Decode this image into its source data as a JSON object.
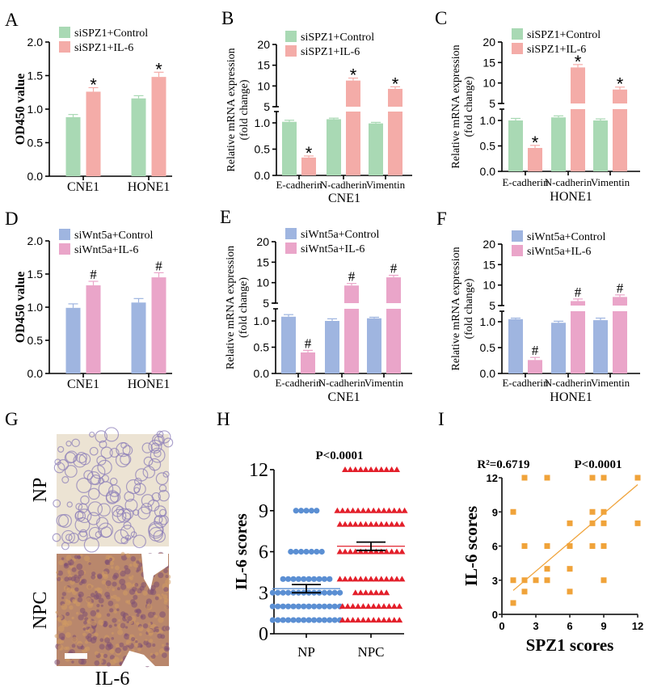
{
  "panel_labels": [
    "A",
    "B",
    "C",
    "D",
    "E",
    "F",
    "G",
    "H",
    "I"
  ],
  "panel_g": {
    "row_labels": [
      "NP",
      "NPC"
    ],
    "stain_label": "IL-6"
  },
  "chart_data": [
    {
      "panel": "A",
      "type": "bar",
      "ylabel": "OD450 value",
      "xlabel": "",
      "ylim": [
        0,
        2.0
      ],
      "yticks": [
        "0.0",
        "0.5",
        "1.0",
        "1.5",
        "2.0"
      ],
      "categories": [
        "CNE1",
        "HONE1"
      ],
      "marker": "*",
      "series": [
        {
          "name": "siSPZ1+Control",
          "color": "#a9d9b4",
          "values": [
            0.88,
            1.16
          ],
          "errors": [
            0.04,
            0.04
          ]
        },
        {
          "name": "siSPZ1+IL-6",
          "color": "#f4aca8",
          "values": [
            1.26,
            1.48
          ],
          "errors": [
            0.06,
            0.07
          ],
          "significant": [
            true,
            true
          ]
        }
      ]
    },
    {
      "panel": "B",
      "type": "bar",
      "ylabel": "Relative mRNA expression",
      "ylabel2": "(fold change)",
      "xlabel": "CNE1",
      "broken_axis": true,
      "yticks_lower": [
        "0.0",
        "0.5",
        "1.0"
      ],
      "yticks_upper": [
        "5",
        "10",
        "15",
        "20"
      ],
      "categories": [
        "E-cadherin",
        "N-cadherin",
        "Vimentin"
      ],
      "marker": "*",
      "series": [
        {
          "name": "siSPZ1+Control",
          "color": "#a9d9b4",
          "values": [
            1.02,
            1.07,
            0.99
          ],
          "errors": [
            0.03,
            0.02,
            0.02
          ]
        },
        {
          "name": "siSPZ1+IL-6",
          "color": "#f4aca8",
          "values": [
            0.34,
            11.3,
            9.3
          ],
          "errors": [
            0.03,
            0.6,
            0.5
          ],
          "significant": [
            true,
            true,
            true
          ]
        }
      ]
    },
    {
      "panel": "C",
      "type": "bar",
      "ylabel": "Relative mRNA expression",
      "ylabel2": "(fold change)",
      "xlabel": "HONE1",
      "broken_axis": true,
      "yticks_lower": [
        "0.0",
        "0.5",
        "1.0"
      ],
      "yticks_upper": [
        "5",
        "10",
        "15",
        "20"
      ],
      "categories": [
        "E-cadherin",
        "N-cadherin",
        "Vimentin"
      ],
      "marker": "*",
      "series": [
        {
          "name": "siSPZ1+Control",
          "color": "#a9d9b4",
          "values": [
            1.0,
            1.06,
            1.0
          ],
          "errors": [
            0.04,
            0.03,
            0.03
          ]
        },
        {
          "name": "siSPZ1+IL-6",
          "color": "#f4aca8",
          "values": [
            0.46,
            13.8,
            8.4
          ],
          "errors": [
            0.05,
            0.7,
            0.6
          ],
          "significant": [
            true,
            true,
            true
          ]
        }
      ]
    },
    {
      "panel": "D",
      "type": "bar",
      "ylabel": "OD450 value",
      "xlabel": "",
      "ylim": [
        0,
        2.0
      ],
      "yticks": [
        "0.0",
        "0.5",
        "1.0",
        "1.5",
        "2.0"
      ],
      "categories": [
        "CNE1",
        "HONE1"
      ],
      "marker": "#",
      "series": [
        {
          "name": "siWnt5a+Control",
          "color": "#9fb5e0",
          "values": [
            0.99,
            1.07
          ],
          "errors": [
            0.06,
            0.06
          ]
        },
        {
          "name": "siWnt5a+IL-6",
          "color": "#eaa5c9",
          "values": [
            1.33,
            1.45
          ],
          "errors": [
            0.06,
            0.07
          ],
          "significant": [
            true,
            true
          ]
        }
      ]
    },
    {
      "panel": "E",
      "type": "bar",
      "ylabel": "Relative mRNA expression",
      "ylabel2": "(fold change)",
      "xlabel": "CNE1",
      "broken_axis": true,
      "yticks_lower": [
        "0.0",
        "0.5",
        "1.0"
      ],
      "yticks_upper": [
        "5",
        "10",
        "15",
        "20"
      ],
      "categories": [
        "E-cadherin",
        "N-cadherin",
        "Vimentin"
      ],
      "marker": "#",
      "series": [
        {
          "name": "siWnt5a+Control",
          "color": "#9fb5e0",
          "values": [
            1.08,
            1.0,
            1.05
          ],
          "errors": [
            0.04,
            0.04,
            0.02
          ]
        },
        {
          "name": "siWnt5a+IL-6",
          "color": "#eaa5c9",
          "values": [
            0.4,
            9.3,
            11.3
          ],
          "errors": [
            0.04,
            0.5,
            0.5
          ],
          "significant": [
            true,
            true,
            true
          ]
        }
      ]
    },
    {
      "panel": "F",
      "type": "bar",
      "ylabel": "Relative mRNA expression",
      "ylabel2": "(fold change)",
      "xlabel": "HONE1",
      "broken_axis": true,
      "yticks_lower": [
        "0.0",
        "0.5",
        "1.0"
      ],
      "yticks_upper": [
        "5",
        "10",
        "15",
        "20"
      ],
      "categories": [
        "E-cadherin",
        "N-cadherin",
        "Vimentin"
      ],
      "marker": "#",
      "series": [
        {
          "name": "siWnt5a+Control",
          "color": "#9fb5e0",
          "values": [
            1.05,
            0.98,
            1.03
          ],
          "errors": [
            0.02,
            0.03,
            0.04
          ]
        },
        {
          "name": "siWnt5a+IL-6",
          "color": "#eaa5c9",
          "values": [
            0.26,
            6.1,
            7.1
          ],
          "errors": [
            0.05,
            0.5,
            0.5
          ],
          "significant": [
            true,
            true,
            true
          ]
        }
      ]
    },
    {
      "panel": "H",
      "type": "scatter",
      "title": "P<0.0001",
      "ylabel": "IL-6 scores",
      "xlabel": "",
      "ylim": [
        0,
        12
      ],
      "yticks": [
        "0",
        "3",
        "6",
        "9",
        "12"
      ],
      "categories": [
        "NP",
        "NPC"
      ],
      "groups": [
        {
          "category": "NP",
          "marker": "circle",
          "color": "#5b8fd3",
          "mean": 3.3,
          "sem": 0.3,
          "levels": [
            {
              "y": 9,
              "n": 5
            },
            {
              "y": 6,
              "n": 7
            },
            {
              "y": 4,
              "n": 10
            },
            {
              "y": 3,
              "n": 14
            },
            {
              "y": 2,
              "n": 14
            },
            {
              "y": 1,
              "n": 14
            }
          ]
        },
        {
          "category": "NPC",
          "marker": "triangle",
          "color": "#e3202b",
          "mean": 6.4,
          "sem": 0.3,
          "levels": [
            {
              "y": 12,
              "n": 11
            },
            {
              "y": 9,
              "n": 14
            },
            {
              "y": 8,
              "n": 13
            },
            {
              "y": 6,
              "n": 13
            },
            {
              "y": 4,
              "n": 13
            },
            {
              "y": 3,
              "n": 7
            },
            {
              "y": 2,
              "n": 12
            },
            {
              "y": 1,
              "n": 12
            }
          ]
        }
      ]
    },
    {
      "panel": "I",
      "type": "scatter",
      "title": "R²=0.6719",
      "title2": "P<0.0001",
      "xlabel": "SPZ1 scores",
      "ylabel": "IL-6 scores",
      "xlim": [
        0,
        12
      ],
      "ylim": [
        0,
        12
      ],
      "xticks": [
        "0",
        "3",
        "6",
        "9",
        "12"
      ],
      "yticks": [
        "0",
        "3",
        "6",
        "9",
        "12"
      ],
      "color": "#f0a33a",
      "points": [
        [
          2,
          12
        ],
        [
          4,
          12
        ],
        [
          8,
          12
        ],
        [
          9,
          12
        ],
        [
          12,
          12
        ],
        [
          1,
          9
        ],
        [
          8,
          9
        ],
        [
          9,
          9
        ],
        [
          6,
          8
        ],
        [
          8,
          8
        ],
        [
          9,
          8
        ],
        [
          12,
          8
        ],
        [
          2,
          6
        ],
        [
          4,
          6
        ],
        [
          6,
          6
        ],
        [
          8,
          6
        ],
        [
          9,
          6
        ],
        [
          4,
          4
        ],
        [
          6,
          4
        ],
        [
          1,
          3
        ],
        [
          2,
          3
        ],
        [
          3,
          3
        ],
        [
          4,
          3
        ],
        [
          9,
          3
        ],
        [
          2,
          2
        ],
        [
          6,
          2
        ],
        [
          1,
          1
        ]
      ],
      "fit_line": [
        [
          1,
          2.1
        ],
        [
          12,
          11.4
        ]
      ]
    }
  ]
}
